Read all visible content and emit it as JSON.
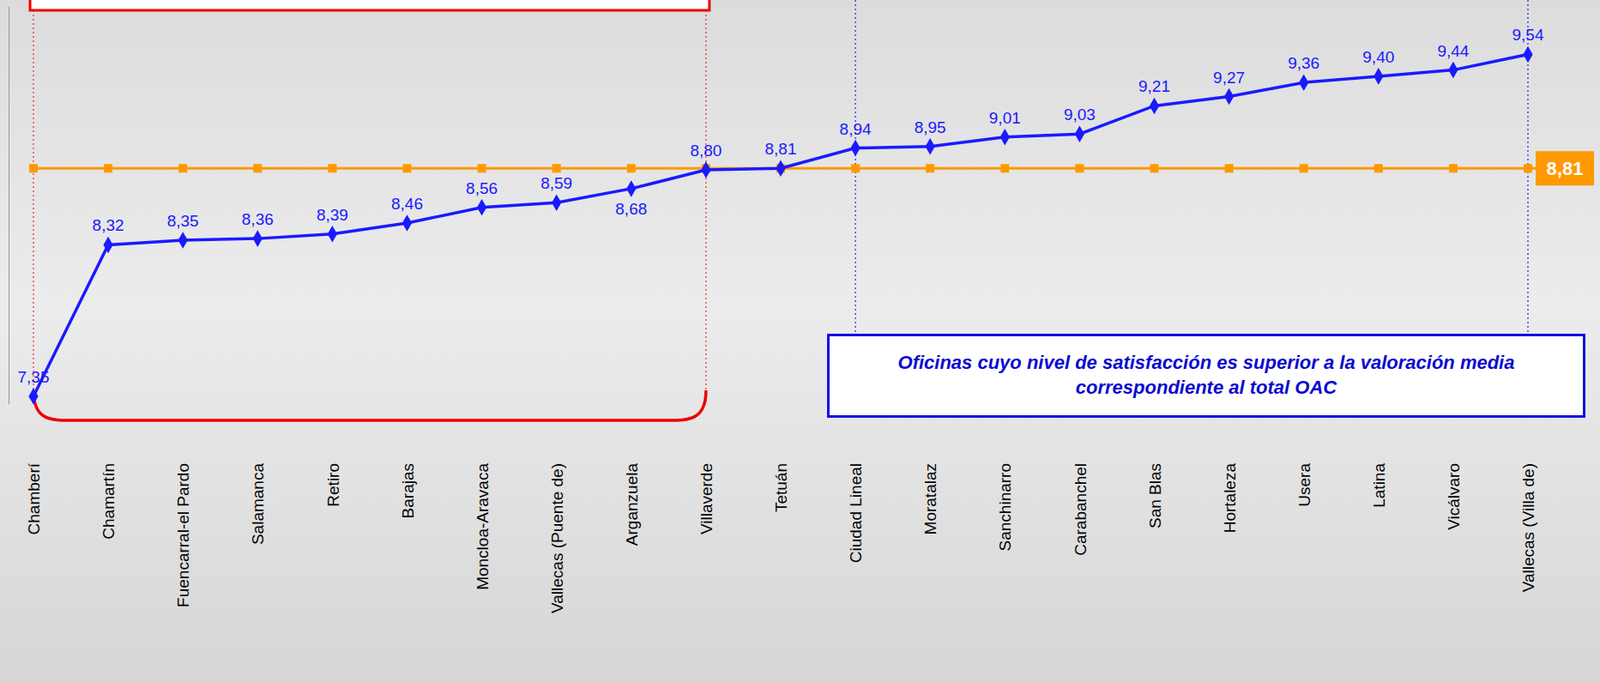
{
  "chart_data": {
    "type": "line",
    "categories": [
      "Chamberí",
      "Chamartín",
      "Fuencarral-el Pardo",
      "Salamanca",
      "Retiro",
      "Barajas",
      "Moncloa-Aravaca",
      "Vallecas (Puente de)",
      "Arganzuela",
      "Villaverde",
      "Tetuán",
      "Ciudad Lineal",
      "Moratalaz",
      "Sanchinarro",
      "Carabanchel",
      "San Blas",
      "Hortaleza",
      "Usera",
      "Latina",
      "Vicálvaro",
      "Vallecas (Villa de)"
    ],
    "values": [
      7.35,
      8.32,
      8.35,
      8.36,
      8.39,
      8.46,
      8.56,
      8.59,
      8.68,
      8.8,
      8.81,
      8.94,
      8.95,
      9.01,
      9.03,
      9.21,
      9.27,
      9.36,
      9.4,
      9.44,
      9.54
    ],
    "value_labels": [
      "7,35",
      "8,32",
      "8,35",
      "8,36",
      "8,39",
      "8,46",
      "8,56",
      "8,59",
      "8,68",
      "8,80",
      "8,81",
      "8,94",
      "8,95",
      "9,01",
      "9,03",
      "9,21",
      "9,27",
      "9,36",
      "9,40",
      "9,44",
      "9,54"
    ],
    "color": "#1a1aff",
    "marker": "diamond",
    "data_labels": true,
    "tick_labels": "x",
    "ylim": [
      7.3,
      9.85
    ],
    "yticks": [],
    "grid": false,
    "reference_line": {
      "value": 8.81,
      "label": "8,81",
      "color": "#ff9900"
    },
    "annotation": "Oficinas cuyo nivel de satisfacción es superior a la valoración media correspondiente al total OAC",
    "below_average_range": [
      0,
      9
    ],
    "above_average_range": [
      11,
      20
    ]
  }
}
